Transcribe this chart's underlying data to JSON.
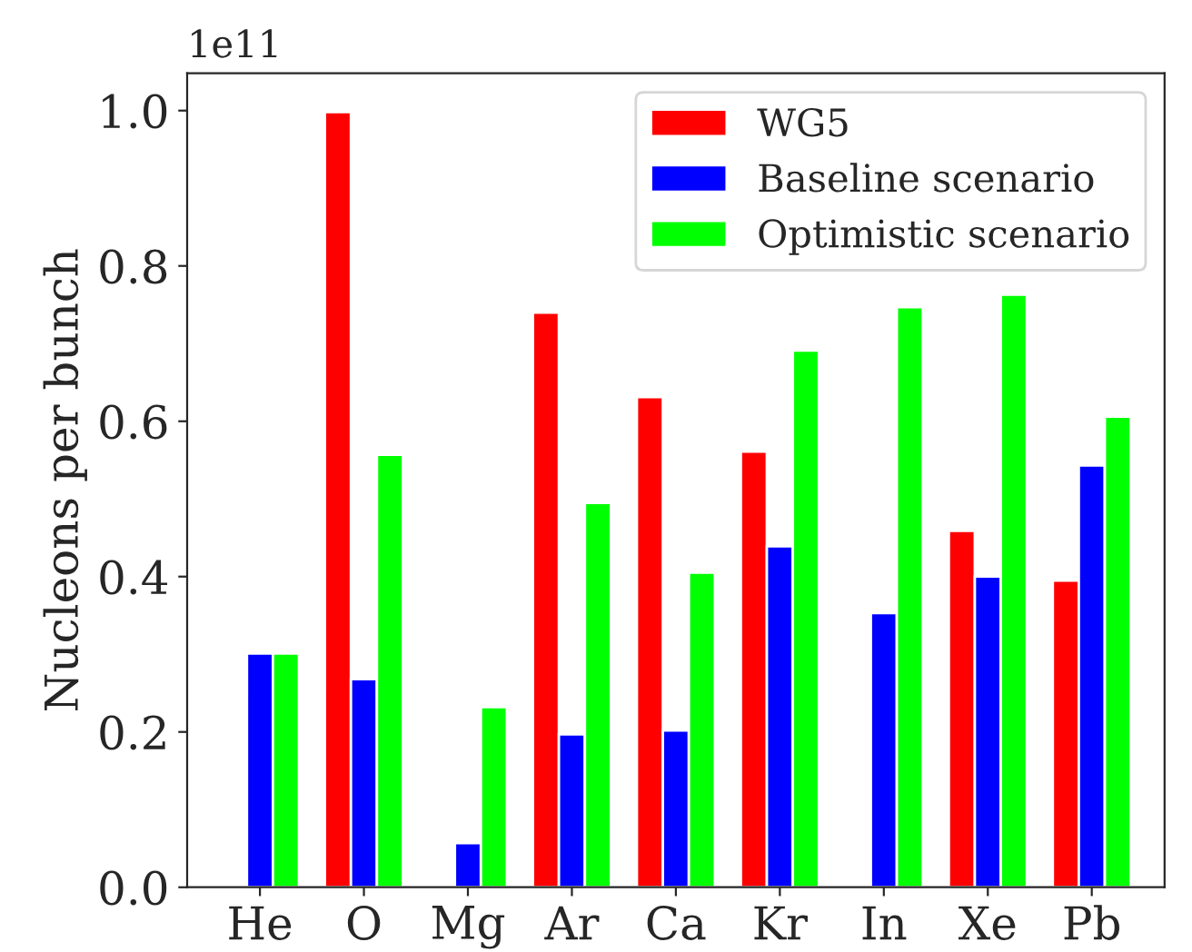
{
  "chart_data": {
    "type": "bar",
    "ylabel": "Nucleons per bunch",
    "categories": [
      "He",
      "O",
      "Mg",
      "Ar",
      "Ca",
      "Kr",
      "In",
      "Xe",
      "Pb"
    ],
    "series": [
      {
        "name": "WG5",
        "color": "#ff0000",
        "values": [
          null,
          0.998,
          null,
          0.74,
          0.631,
          0.561,
          null,
          0.459,
          0.395
        ]
      },
      {
        "name": "Baseline scenario",
        "color": "#0000ff",
        "values": [
          0.301,
          0.268,
          0.057,
          0.197,
          0.202,
          0.439,
          0.353,
          0.4,
          0.543
        ]
      },
      {
        "name": "Optimistic scenario",
        "color": "#00ff00",
        "values": [
          0.301,
          0.557,
          0.232,
          0.495,
          0.405,
          0.691,
          0.747,
          0.763,
          0.606
        ]
      }
    ],
    "ylim": [
      0,
      1.048
    ],
    "yticks": [
      {
        "value": 0,
        "label": "0.0"
      },
      {
        "value": 0.2,
        "label": "0.2"
      },
      {
        "value": 0.4,
        "label": "0.4"
      },
      {
        "value": 0.6,
        "label": "0.6"
      },
      {
        "value": 0.8,
        "label": "0.8"
      },
      {
        "value": 1,
        "label": "1.0"
      }
    ],
    "annotations": [
      "1e11"
    ],
    "legend": "top right",
    "grid": false
  }
}
